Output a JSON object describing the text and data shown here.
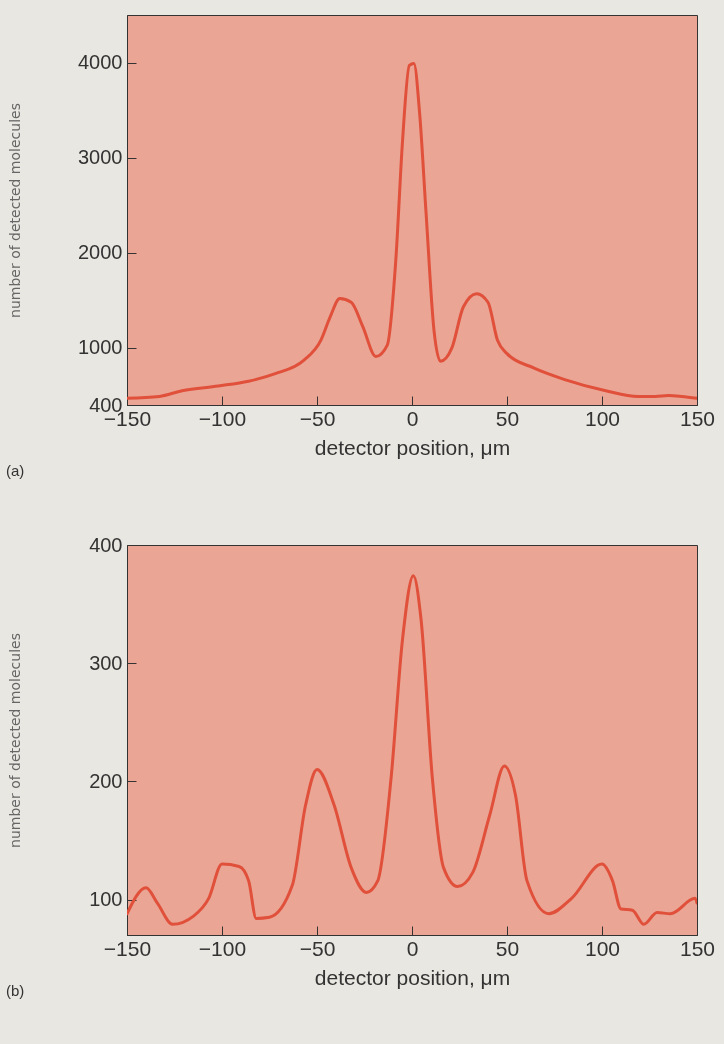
{
  "chart_data": [
    {
      "type": "line",
      "xlabel": "detector position, μm",
      "ylabel": "number of detected molecules",
      "annotations": [
        "(a)"
      ],
      "xlim": [
        -150,
        150
      ],
      "xticks": [
        -150,
        -100,
        -50,
        0,
        50,
        100,
        150
      ],
      "ylim": [
        400,
        4500
      ],
      "yticks": [
        400,
        1000,
        2000,
        3000,
        4000
      ],
      "grid": false,
      "x": [
        -150,
        -133,
        -121,
        -102,
        -86,
        -72,
        -57,
        -48,
        -43,
        -38,
        -32,
        -26,
        -19,
        -13,
        -8.5,
        -5,
        -1.4,
        1,
        4,
        7.4,
        11.6,
        15,
        21,
        27,
        34,
        40,
        45,
        50,
        64,
        80,
        102,
        119,
        128,
        135,
        142,
        150
      ],
      "series": [
        {
          "color": "#e0503a",
          "values": [
            470,
            490,
            550,
            600,
            650,
            730,
            870,
            1080,
            1330,
            1520,
            1480,
            1230,
            910,
            1030,
            1930,
            3170,
            3970,
            3990,
            3470,
            2420,
            1180,
            860,
            1000,
            1430,
            1570,
            1480,
            1080,
            940,
            790,
            670,
            550,
            490,
            490,
            500,
            490,
            470
          ]
        }
      ]
    },
    {
      "type": "line",
      "xlabel": "detector position, μm",
      "ylabel": "number of detected molecules",
      "annotations": [
        "(b)"
      ],
      "xlim": [
        -150,
        150
      ],
      "xticks": [
        -150,
        -100,
        -50,
        0,
        50,
        100,
        150
      ],
      "ylim": [
        70,
        400
      ],
      "yticks": [
        100,
        200,
        300,
        400
      ],
      "grid": false,
      "x": [
        -150,
        -140,
        -134,
        -126,
        -115,
        -107,
        -100,
        -91,
        -86,
        -82,
        -75,
        -63,
        -56,
        -50,
        -41,
        -32,
        -24,
        -18,
        -11,
        -5,
        0.7,
        4.7,
        10.7,
        16.6,
        24,
        32,
        41,
        48.6,
        54.5,
        60.5,
        72,
        84,
        100,
        105.5,
        110,
        116,
        122,
        129,
        136,
        149,
        150
      ],
      "series": [
        {
          "color": "#e0503a",
          "values": [
            88,
            110,
            97,
            79,
            86,
            101,
            130,
            128,
            116,
            84,
            85,
            112,
            180,
            210,
            180,
            127,
            106,
            116,
            203,
            320,
            374,
            338,
            203,
            127,
            111,
            123,
            172,
            213,
            188,
            116,
            88,
            101,
            130,
            116,
            92,
            91,
            79,
            89,
            88,
            101,
            97
          ]
        }
      ]
    }
  ]
}
